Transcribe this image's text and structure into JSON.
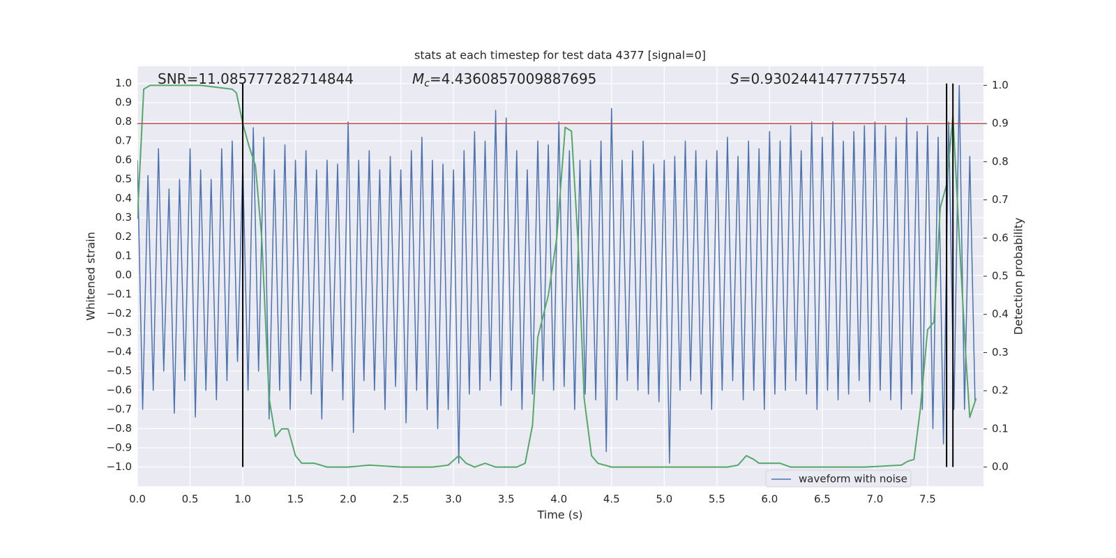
{
  "chart_data": {
    "type": "line",
    "title": "stats at each timestep for test data 4377 [signal=0]",
    "xlabel": "Time (s)",
    "ylabel": "Whitened strain",
    "y2label": "Detection probability",
    "annotations": [
      {
        "text": "SNR=11.085777282714844"
      },
      {
        "symbol": "M",
        "sub": "c",
        "text": "=4.4360857009887695"
      },
      {
        "symbol": "S",
        "text": "=0.9302441477775574"
      }
    ],
    "grid": true,
    "legend": "lower right",
    "xlim": [
      0,
      8.03
    ],
    "ylim": [
      -1.1,
      1.09
    ],
    "y2lim": [
      -0.05,
      1.05
    ],
    "xticks": [
      {
        "value": 0,
        "label": "0.0"
      },
      {
        "value": 0.5,
        "label": "0.5"
      },
      {
        "value": 1,
        "label": "1.0"
      },
      {
        "value": 1.5,
        "label": "1.5"
      },
      {
        "value": 2,
        "label": "2.0"
      },
      {
        "value": 2.5,
        "label": "2.5"
      },
      {
        "value": 3,
        "label": "3.0"
      },
      {
        "value": 3.5,
        "label": "3.5"
      },
      {
        "value": 4,
        "label": "4.0"
      },
      {
        "value": 4.5,
        "label": "4.5"
      },
      {
        "value": 5,
        "label": "5.0"
      },
      {
        "value": 5.5,
        "label": "5.5"
      },
      {
        "value": 6,
        "label": "6.0"
      },
      {
        "value": 6.5,
        "label": "6.5"
      },
      {
        "value": 7,
        "label": "7.0"
      },
      {
        "value": 7.5,
        "label": "7.5"
      }
    ],
    "yticks": [
      {
        "value": -1,
        "label": "−1.0"
      },
      {
        "value": -0.9,
        "label": "−0.9"
      },
      {
        "value": -0.8,
        "label": "−0.8"
      },
      {
        "value": -0.7,
        "label": "−0.7"
      },
      {
        "value": -0.6,
        "label": "−0.6"
      },
      {
        "value": -0.5,
        "label": "−0.5"
      },
      {
        "value": -0.4,
        "label": "−0.4"
      },
      {
        "value": -0.3,
        "label": "−0.3"
      },
      {
        "value": -0.2,
        "label": "−0.2"
      },
      {
        "value": -0.1,
        "label": "−0.1"
      },
      {
        "value": 0,
        "label": "0.0"
      },
      {
        "value": 0.1,
        "label": "0.1"
      },
      {
        "value": 0.2,
        "label": "0.2"
      },
      {
        "value": 0.3,
        "label": "0.3"
      },
      {
        "value": 0.4,
        "label": "0.4"
      },
      {
        "value": 0.5,
        "label": "0.5"
      },
      {
        "value": 0.6,
        "label": "0.6"
      },
      {
        "value": 0.7,
        "label": "0.7"
      },
      {
        "value": 0.8,
        "label": "0.8"
      },
      {
        "value": 0.9,
        "label": "0.9"
      },
      {
        "value": 1,
        "label": "1.0"
      }
    ],
    "y2ticks": [
      {
        "value": 0,
        "label": "0.0"
      },
      {
        "value": 0.1,
        "label": "0.1"
      },
      {
        "value": 0.2,
        "label": "0.2"
      },
      {
        "value": 0.3,
        "label": "0.3"
      },
      {
        "value": 0.4,
        "label": "0.4"
      },
      {
        "value": 0.5,
        "label": "0.5"
      },
      {
        "value": 0.6,
        "label": "0.6"
      },
      {
        "value": 0.7,
        "label": "0.7"
      },
      {
        "value": 0.8,
        "label": "0.8"
      },
      {
        "value": 0.9,
        "label": "0.9"
      },
      {
        "value": 1,
        "label": "1.0"
      }
    ],
    "hline": 0.9,
    "hline_color": "#c44e52",
    "vlines": [
      1.0,
      7.68,
      7.74
    ],
    "vline_span": [
      -1.0,
      1.0
    ],
    "vline_color": "#000000",
    "series": [
      {
        "name": "waveform with noise",
        "color": "#4c72b0",
        "x": [
          0,
          0.05,
          0.1,
          0.15,
          0.2,
          0.25,
          0.3,
          0.35,
          0.4,
          0.45,
          0.5,
          0.55,
          0.6,
          0.65,
          0.7,
          0.75,
          0.8,
          0.85,
          0.9,
          0.95,
          1,
          1.05,
          1.1,
          1.15,
          1.2,
          1.25,
          1.3,
          1.35,
          1.4,
          1.45,
          1.5,
          1.55,
          1.6,
          1.65,
          1.7,
          1.75,
          1.8,
          1.85,
          1.9,
          1.95,
          2,
          2.05,
          2.1,
          2.15,
          2.2,
          2.25,
          2.3,
          2.35,
          2.4,
          2.45,
          2.5,
          2.55,
          2.6,
          2.65,
          2.7,
          2.75,
          2.8,
          2.85,
          2.9,
          2.95,
          3,
          3.05,
          3.1,
          3.15,
          3.2,
          3.25,
          3.3,
          3.35,
          3.4,
          3.45,
          3.5,
          3.55,
          3.6,
          3.65,
          3.7,
          3.75,
          3.8,
          3.85,
          3.9,
          3.95,
          4,
          4.05,
          4.1,
          4.15,
          4.2,
          4.25,
          4.3,
          4.35,
          4.4,
          4.45,
          4.5,
          4.55,
          4.6,
          4.65,
          4.7,
          4.75,
          4.8,
          4.85,
          4.9,
          4.95,
          5,
          5.05,
          5.1,
          5.15,
          5.2,
          5.25,
          5.3,
          5.35,
          5.4,
          5.45,
          5.5,
          5.55,
          5.6,
          5.65,
          5.7,
          5.75,
          5.8,
          5.85,
          5.9,
          5.95,
          6,
          6.05,
          6.1,
          6.15,
          6.2,
          6.25,
          6.3,
          6.35,
          6.4,
          6.45,
          6.5,
          6.55,
          6.6,
          6.65,
          6.7,
          6.75,
          6.8,
          6.85,
          6.9,
          6.95,
          7,
          7.05,
          7.1,
          7.15,
          7.2,
          7.25,
          7.3,
          7.35,
          7.4,
          7.45,
          7.5,
          7.55,
          7.6,
          7.65,
          7.7,
          7.75,
          7.8,
          7.85,
          7.9,
          7.95
        ],
        "values": [
          0.6,
          -0.7,
          0.52,
          -0.6,
          0.66,
          -0.5,
          0.45,
          -0.72,
          0.5,
          -0.55,
          0.66,
          -0.74,
          0.55,
          -0.6,
          0.5,
          -0.65,
          0.66,
          -0.55,
          0.7,
          -0.45,
          0.58,
          -0.6,
          0.77,
          -0.5,
          0.72,
          -0.75,
          0.55,
          -0.6,
          0.68,
          -0.7,
          0.6,
          -0.55,
          0.65,
          -0.62,
          0.55,
          -0.75,
          0.6,
          -0.5,
          0.58,
          -0.65,
          0.8,
          -0.82,
          0.6,
          -0.55,
          0.65,
          -0.6,
          0.55,
          -0.7,
          0.62,
          -0.58,
          0.55,
          -0.77,
          0.65,
          -0.6,
          0.72,
          -0.7,
          0.6,
          -0.8,
          0.58,
          -0.7,
          0.55,
          -0.98,
          0.65,
          -0.62,
          0.75,
          -0.6,
          0.7,
          -0.55,
          0.86,
          -0.68,
          0.82,
          -0.6,
          0.65,
          -0.7,
          0.55,
          -0.62,
          0.7,
          -0.55,
          0.68,
          -0.6,
          0.8,
          -0.58,
          0.65,
          -0.7,
          0.6,
          -0.62,
          0.6,
          -0.65,
          0.7,
          -0.92,
          0.87,
          -0.65,
          0.6,
          -0.55,
          0.65,
          -0.6,
          0.7,
          -0.62,
          0.58,
          -0.66,
          0.6,
          -0.98,
          0.62,
          -0.6,
          0.7,
          -0.55,
          0.65,
          -0.62,
          0.6,
          -0.7,
          0.65,
          -0.6,
          0.72,
          -0.55,
          0.62,
          -0.65,
          0.7,
          -0.6,
          0.66,
          -0.7,
          0.75,
          -0.62,
          0.7,
          -0.6,
          0.78,
          -0.55,
          0.65,
          -0.62,
          0.8,
          -0.7,
          0.72,
          -0.6,
          0.8,
          -0.65,
          0.7,
          -0.62,
          0.75,
          -0.55,
          0.78,
          -0.66,
          0.8,
          -0.6,
          0.78,
          -0.65,
          0.72,
          -0.7,
          0.82,
          -0.62,
          0.75,
          -0.7,
          0.78,
          -0.8,
          0.72,
          -0.88,
          0.8,
          -0.7,
          0.99,
          -0.7,
          0.62,
          -0.66
        ]
      },
      {
        "color": "#55a868",
        "axis": "y2",
        "x": [
          0,
          0.06,
          0.12,
          0.3,
          0.6,
          0.9,
          0.94,
          1,
          1.06,
          1.12,
          1.18,
          1.25,
          1.31,
          1.37,
          1.43,
          1.5,
          1.56,
          1.68,
          1.8,
          2,
          2.2,
          2.5,
          2.8,
          2.95,
          3.05,
          3.12,
          3.2,
          3.3,
          3.4,
          3.6,
          3.68,
          3.75,
          3.8,
          3.9,
          3.98,
          4.06,
          4.12,
          4.18,
          4.24,
          4.31,
          4.37,
          4.5,
          5,
          5.6,
          5.7,
          5.78,
          5.85,
          5.9,
          6,
          6.1,
          6.2,
          6.5,
          6.9,
          7.25,
          7.31,
          7.37,
          7.43,
          7.5,
          7.56,
          7.62,
          7.68,
          7.74,
          7.8,
          7.86,
          7.9,
          7.96
        ],
        "values": [
          0.65,
          0.99,
          1.0,
          1.0,
          1.0,
          0.99,
          0.98,
          0.9,
          0.84,
          0.79,
          0.6,
          0.18,
          0.08,
          0.1,
          0.1,
          0.03,
          0.01,
          0.01,
          0.0,
          0.0,
          0.005,
          0.0,
          0.0,
          0.005,
          0.03,
          0.01,
          0.0,
          0.01,
          0.0,
          0.0,
          0.01,
          0.11,
          0.34,
          0.45,
          0.6,
          0.89,
          0.88,
          0.6,
          0.18,
          0.03,
          0.01,
          0.0,
          0.0,
          0.0,
          0.005,
          0.03,
          0.02,
          0.01,
          0.01,
          0.01,
          0.0,
          0.0,
          0.0,
          0.005,
          0.015,
          0.02,
          0.15,
          0.36,
          0.38,
          0.68,
          0.74,
          0.92,
          0.6,
          0.3,
          0.13,
          0.18
        ]
      }
    ]
  }
}
